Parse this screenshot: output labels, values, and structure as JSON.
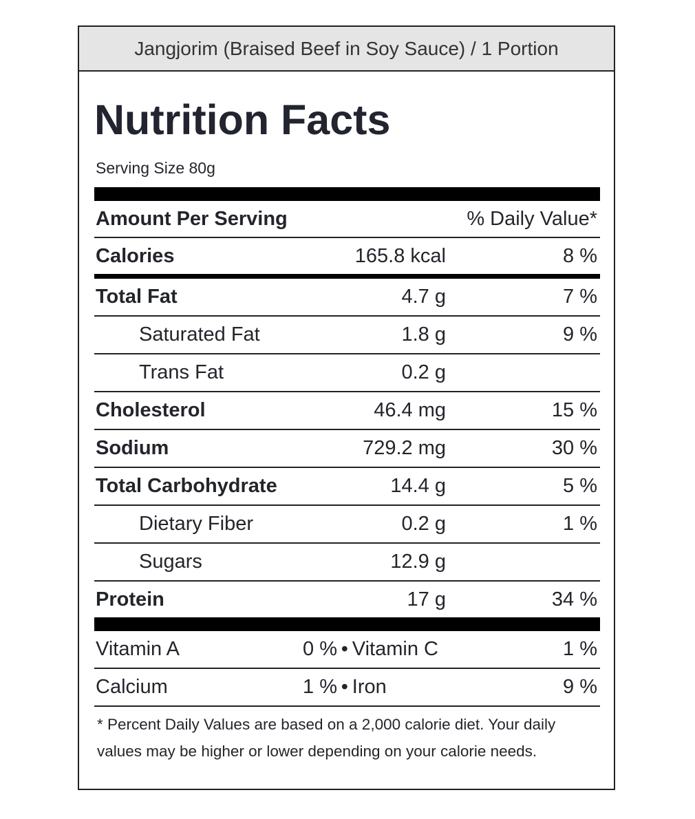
{
  "header": {
    "title": "Jangjorim (Braised Beef in Soy Sauce) / 1 Portion"
  },
  "label": {
    "heading": "Nutrition Facts",
    "serving_size": "Serving Size 80g",
    "amount_per_serving": "Amount Per Serving",
    "daily_value_header": "% Daily Value*",
    "rows": [
      {
        "name": "Calories",
        "amount": "165.8 kcal",
        "dv": "8 %",
        "bold": true
      },
      {
        "name": "Total Fat",
        "amount": "4.7 g",
        "dv": "7 %",
        "bold": true
      },
      {
        "name": "Saturated Fat",
        "amount": "1.8 g",
        "dv": "9 %",
        "indent": true
      },
      {
        "name": "Trans Fat",
        "amount": "0.2 g",
        "indent": true
      },
      {
        "name": "Cholesterol",
        "amount": "46.4 mg",
        "dv": "15 %",
        "bold": true
      },
      {
        "name": "Sodium",
        "amount": "729.2 mg",
        "dv": "30 %",
        "bold": true
      },
      {
        "name": "Total Carbohydrate",
        "amount": "14.4 g",
        "dv": "5 %",
        "bold": true
      },
      {
        "name": "Dietary Fiber",
        "amount": "0.2 g",
        "dv": "1 %",
        "indent": true
      },
      {
        "name": "Sugars",
        "amount": "12.9 g",
        "indent": true
      },
      {
        "name": "Protein",
        "amount": "17 g",
        "dv": "34 %",
        "bold": true
      }
    ],
    "vitamins": [
      {
        "name1": "Vitamin A",
        "value1": "0 %",
        "name2": "Vitamin C",
        "value2": "1 %"
      },
      {
        "name1": "Calcium",
        "value1": "1 %",
        "name2": "Iron",
        "value2": "9 %"
      }
    ],
    "footnote": "* Percent Daily Values are based on a 2,000 calorie diet. Your daily values may be higher or lower depending on your calorie needs."
  }
}
